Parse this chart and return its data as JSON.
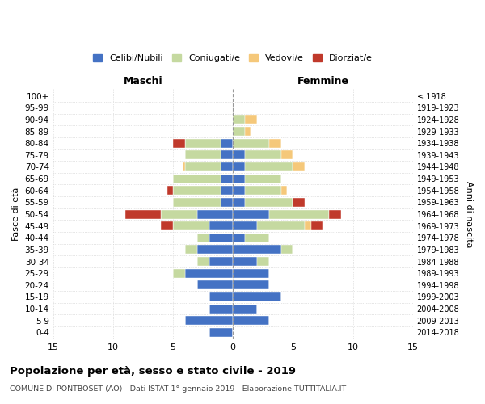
{
  "age_groups": [
    "0-4",
    "5-9",
    "10-14",
    "15-19",
    "20-24",
    "25-29",
    "30-34",
    "35-39",
    "40-44",
    "45-49",
    "50-54",
    "55-59",
    "60-64",
    "65-69",
    "70-74",
    "75-79",
    "80-84",
    "85-89",
    "90-94",
    "95-99",
    "100+"
  ],
  "birth_years": [
    "2014-2018",
    "2009-2013",
    "2004-2008",
    "1999-2003",
    "1994-1998",
    "1989-1993",
    "1984-1988",
    "1979-1983",
    "1974-1978",
    "1969-1973",
    "1964-1968",
    "1959-1963",
    "1954-1958",
    "1949-1953",
    "1944-1948",
    "1939-1943",
    "1934-1938",
    "1929-1933",
    "1924-1928",
    "1919-1923",
    "≤ 1918"
  ],
  "males": {
    "celibi": [
      2,
      4,
      2,
      2,
      3,
      4,
      2,
      3,
      2,
      2,
      3,
      1,
      1,
      1,
      1,
      1,
      1,
      0,
      0,
      0,
      0
    ],
    "coniugati": [
      0,
      0,
      0,
      0,
      0,
      1,
      1,
      1,
      1,
      3,
      3,
      4,
      4,
      4,
      3,
      3,
      3,
      0,
      0,
      0,
      0
    ],
    "vedovi": [
      0,
      0,
      0,
      0,
      0,
      0,
      0,
      0,
      0,
      0,
      0,
      0,
      0,
      0,
      0.2,
      0,
      0,
      0,
      0,
      0,
      0
    ],
    "divorziati": [
      0,
      0,
      0,
      0,
      0,
      0,
      0,
      0,
      0,
      1,
      3,
      0,
      0.5,
      0,
      0,
      0,
      1,
      0,
      0,
      0,
      0
    ]
  },
  "females": {
    "nubili": [
      0,
      3,
      2,
      4,
      3,
      3,
      2,
      4,
      1,
      2,
      3,
      1,
      1,
      1,
      1,
      1,
      0,
      0,
      0,
      0,
      0
    ],
    "coniugate": [
      0,
      0,
      0,
      0,
      0,
      0,
      1,
      1,
      2,
      4,
      5,
      4,
      3,
      3,
      4,
      3,
      3,
      1,
      1,
      0,
      0
    ],
    "vedove": [
      0,
      0,
      0,
      0,
      0,
      0,
      0,
      0,
      0,
      0.5,
      0,
      0,
      0.5,
      0,
      1,
      1,
      1,
      0.5,
      1,
      0,
      0
    ],
    "divorziate": [
      0,
      0,
      0,
      0,
      0,
      0,
      0,
      0,
      0,
      1,
      1,
      1,
      0,
      0,
      0,
      0,
      0,
      0,
      0,
      0,
      0
    ]
  },
  "colors": {
    "celibi": "#4472c4",
    "coniugati": "#c5d9a0",
    "vedovi": "#f5c87a",
    "divorziati": "#c0392b"
  },
  "title": "Popolazione per età, sesso e stato civile - 2019",
  "subtitle": "COMUNE DI PONTBOSET (AO) - Dati ISTAT 1° gennaio 2019 - Elaborazione TUTTITALIA.IT",
  "xlabel_left": "Maschi",
  "xlabel_right": "Femmine",
  "ylabel_left": "Fasce di età",
  "ylabel_right": "Anni di nascita",
  "xlim": 15,
  "xticks": [
    -15,
    -10,
    -5,
    0,
    5,
    10,
    15
  ],
  "xticklabels": [
    "15",
    "10",
    "5",
    "0",
    "5",
    "10",
    "15"
  ],
  "bar_height": 0.75
}
